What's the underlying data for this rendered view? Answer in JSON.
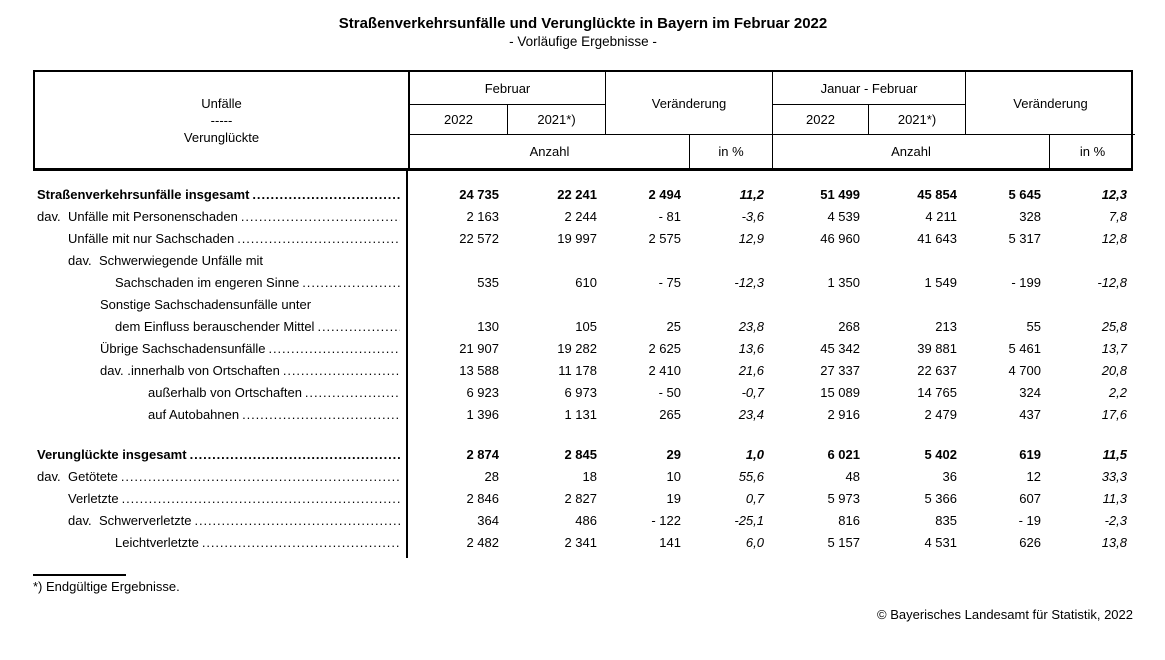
{
  "title": "Straßenverkehrsunfälle und Verunglückte in Bayern im Februar 2022",
  "subtitle": "- Vorläufige Ergebnisse -",
  "header": {
    "row_label": {
      "line1": "Unfälle",
      "line2": "-----",
      "line3": "Verunglückte"
    },
    "month_group": "Februar",
    "cumulative_group": "Januar - Februar",
    "change": "Veränderung",
    "year_current": "2022",
    "year_previous": "2021*)",
    "unit_count": "Anzahl",
    "unit_percent": "in %"
  },
  "table": {
    "leader_char": ".",
    "blocks": [
      {
        "rows": [
          {
            "indent": 0,
            "prefix": "",
            "label": "Straßenverkehrsunfälle insgesamt",
            "bold": true,
            "dots": true,
            "values": [
              "24 735",
              "22 241",
              "2 494",
              "11,2",
              "51 499",
              "45 854",
              "5 645",
              "12,3"
            ]
          },
          {
            "indent": 0,
            "prefix": "dav.",
            "label": "Unfälle mit Personenschaden",
            "bold": false,
            "dots": true,
            "values": [
              "2 163",
              "2 244",
              "- 81",
              "-3,6",
              "4 539",
              "4 211",
              "328",
              "7,8"
            ]
          },
          {
            "indent": 1,
            "prefix": "",
            "label": "Unfälle mit nur Sachschaden",
            "bold": false,
            "dots": true,
            "values": [
              "22 572",
              "19 997",
              "2 575",
              "12,9",
              "46 960",
              "41 643",
              "5 317",
              "12,8"
            ]
          },
          {
            "indent": 1,
            "prefix": "dav.",
            "label": "Schwerwiegende Unfälle mit",
            "bold": false,
            "dots": false,
            "values": []
          },
          {
            "indent": 3,
            "prefix": "",
            "label": "Sachschaden im engeren Sinne",
            "bold": false,
            "dots": true,
            "values": [
              "535",
              "610",
              "- 75",
              "-12,3",
              "1 350",
              "1 549",
              "- 199",
              "-12,8"
            ]
          },
          {
            "indent": 2,
            "prefix": "",
            "label": "Sonstige Sachschadensunfälle unter",
            "bold": false,
            "dots": false,
            "values": []
          },
          {
            "indent": 3,
            "prefix": "",
            "label": "dem Einfluss berauschender Mittel",
            "bold": false,
            "dots": true,
            "values": [
              "130",
              "105",
              "25",
              "23,8",
              "268",
              "213",
              "55",
              "25,8"
            ]
          },
          {
            "indent": 2,
            "prefix": "",
            "label": "Übrige Sachschadensunfälle",
            "bold": false,
            "dots": true,
            "values": [
              "21 907",
              "19 282",
              "2 625",
              "13,6",
              "45 342",
              "39 881",
              "5 461",
              "13,7"
            ]
          },
          {
            "indent": 2,
            "prefix": "dav. .",
            "label": "innerhalb von Ortschaften",
            "bold": false,
            "dots": true,
            "values": [
              "13 588",
              "11 178",
              "2 410",
              "21,6",
              "27 337",
              "22 637",
              "4 700",
              "20,8"
            ]
          },
          {
            "indent": 4,
            "prefix": "",
            "label": "außerhalb von Ortschaften",
            "bold": false,
            "dots": true,
            "values": [
              "6 923",
              "6 973",
              "- 50",
              "-0,7",
              "15 089",
              "14 765",
              "324",
              "2,2"
            ]
          },
          {
            "indent": 4,
            "prefix": "",
            "label": "auf Autobahnen",
            "bold": false,
            "dots": true,
            "values": [
              "1 396",
              "1 131",
              "265",
              "23,4",
              "2 916",
              "2 479",
              "437",
              "17,6"
            ]
          }
        ]
      },
      {
        "rows": [
          {
            "indent": 0,
            "prefix": "",
            "label": "Verunglückte insgesamt",
            "bold": true,
            "dots": true,
            "values": [
              "2 874",
              "2 845",
              "29",
              "1,0",
              "6 021",
              "5 402",
              "619",
              "11,5"
            ]
          },
          {
            "indent": 0,
            "prefix": "dav.",
            "label": "Getötete",
            "bold": false,
            "dots": true,
            "values": [
              "28",
              "18",
              "10",
              "55,6",
              "48",
              "36",
              "12",
              "33,3"
            ]
          },
          {
            "indent": 1,
            "prefix": "",
            "label": "Verletzte",
            "bold": false,
            "dots": true,
            "values": [
              "2 846",
              "2 827",
              "19",
              "0,7",
              "5 973",
              "5 366",
              "607",
              "11,3"
            ]
          },
          {
            "indent": 1,
            "prefix": "dav.",
            "label": "Schwerverletzte",
            "bold": false,
            "dots": true,
            "values": [
              "364",
              "486",
              "- 122",
              "-25,1",
              "816",
              "835",
              "- 19",
              "-2,3"
            ]
          },
          {
            "indent": 3,
            "prefix": "",
            "label": "Leichtverletzte",
            "bold": false,
            "dots": true,
            "values": [
              "2 482",
              "2 341",
              "141",
              "6,0",
              "5 157",
              "4 531",
              "626",
              "13,8"
            ]
          }
        ]
      }
    ]
  },
  "footnote": "*) Endgültige Ergebnisse.",
  "copyright": "© Bayerisches Landesamt für Statistik, 2022"
}
